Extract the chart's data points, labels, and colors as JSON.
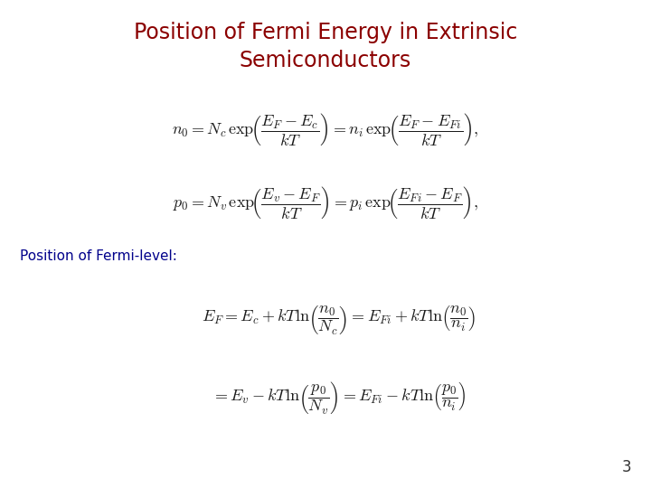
{
  "title_line1": "Position of Fermi Energy in Extrinsic",
  "title_line2": "Semiconductors",
  "title_color": "#8B0000",
  "title_fontsize": 17,
  "subtitle_label": "Position of Fermi-level:",
  "subtitle_color": "#00008B",
  "subtitle_fontsize": 11,
  "eq_color": "#1a1a1a",
  "eq_fontsize": 13,
  "eq3_fontsize": 13,
  "page_number": "3",
  "background_color": "#ffffff"
}
